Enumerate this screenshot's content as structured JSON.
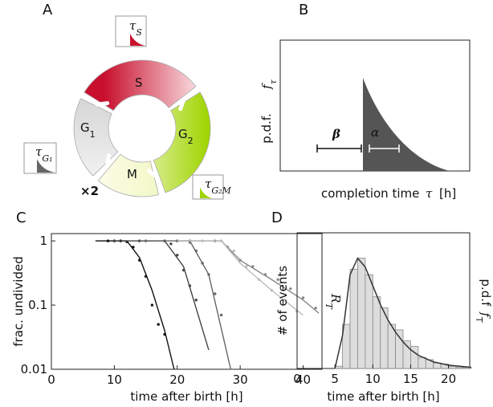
{
  "panels": {
    "A": {
      "label": "A",
      "phases": {
        "S": "S",
        "G1": {
          "base": "G",
          "sub": "1"
        },
        "G2": {
          "base": "G",
          "sub": "2"
        },
        "M": "M"
      },
      "times": {
        "S": {
          "base": "τ",
          "sub": "S"
        },
        "G1": {
          "base": "τ",
          "sub": "G₁"
        },
        "G2M": {
          "base": "τ",
          "sub": "G₂M"
        }
      },
      "multiplier": "×2"
    },
    "B": {
      "label": "B",
      "ylabel": "p.d.f.",
      "f": {
        "base": "f",
        "sub": "τ"
      },
      "beta": "β",
      "alpha": "α",
      "xlabel": "completion time",
      "xvar": "τ",
      "xunit": "[h]"
    }
  },
  "chart_data": [
    {
      "type": "line",
      "label": "C",
      "log_y": true,
      "xlabel": "time after birth [h]",
      "ylabel": "frac. undivided",
      "side_label": {
        "base": "R",
        "sub": "T"
      },
      "xlim": [
        0,
        43
      ],
      "xticks": [
        0,
        10,
        20,
        30,
        40
      ],
      "ylim": [
        0.01,
        1.3
      ],
      "yticks": [
        0.01,
        0.1,
        1
      ],
      "series": [
        {
          "color": "#111111",
          "x": [
            9,
            10,
            11,
            12,
            13,
            14,
            15,
            16,
            17,
            18
          ],
          "values": [
            1,
            1,
            1,
            0.97,
            0.8,
            0.5,
            0.28,
            0.1,
            0.05,
            0.035
          ],
          "fit_x": [
            7,
            12,
            14,
            16,
            18,
            19.5
          ],
          "fit_values": [
            1,
            1,
            0.55,
            0.17,
            0.04,
            0.01
          ]
        },
        {
          "color": "#444444",
          "x": [
            10,
            14,
            18,
            19,
            20,
            21,
            22,
            23
          ],
          "values": [
            1,
            1,
            1,
            0.9,
            0.6,
            0.35,
            0.2,
            0.12
          ],
          "fit_x": [
            10,
            18,
            21,
            25
          ],
          "fit_values": [
            1,
            1,
            0.4,
            0.02
          ]
        },
        {
          "color": "#666666",
          "x": [
            15,
            20,
            22,
            23,
            24,
            25,
            26,
            27
          ],
          "values": [
            1,
            1,
            0.95,
            0.7,
            0.45,
            0.3,
            0.15,
            0.07
          ],
          "fit_x": [
            14,
            22,
            25,
            28.5
          ],
          "fit_values": [
            1,
            1,
            0.3,
            0.01
          ]
        },
        {
          "color": "#888888",
          "x": [
            22,
            26,
            28,
            30,
            32,
            34,
            36,
            38,
            40,
            42
          ],
          "values": [
            1,
            1,
            0.8,
            0.5,
            0.4,
            0.3,
            0.25,
            0.18,
            0.13,
            0.09
          ],
          "fit_x": [
            20,
            27,
            30,
            35,
            40,
            42.5
          ],
          "fit_values": [
            1,
            1,
            0.5,
            0.25,
            0.12,
            0.075
          ]
        },
        {
          "color": "#bbbbbb",
          "x": [
            24,
            27,
            29,
            31,
            33,
            35,
            37,
            39
          ],
          "values": [
            1,
            1,
            0.7,
            0.4,
            0.25,
            0.17,
            0.12,
            0.08
          ],
          "fit_x": [
            20,
            27,
            30,
            35,
            40
          ],
          "fit_values": [
            1,
            1,
            0.45,
            0.17,
            0.07
          ]
        }
      ]
    },
    {
      "type": "histogram",
      "label": "D",
      "xlabel": "time after birth [h]",
      "ylabel": "# of events",
      "side_label": {
        "base": "p.d.f",
        "var": "f",
        "sub": "T"
      },
      "xlim": [
        0,
        22.8
      ],
      "xticks": [
        0,
        5,
        10,
        15,
        20
      ],
      "ylim": [
        0,
        1.23
      ],
      "bins": [
        5,
        6,
        7,
        8,
        9,
        10,
        11,
        12,
        13,
        14,
        15,
        16,
        17,
        18,
        19,
        20,
        21,
        22,
        23
      ],
      "counts": [
        0.02,
        0.4,
        0.9,
        1.0,
        0.85,
        0.65,
        0.55,
        0.4,
        0.35,
        0.25,
        0.2,
        0.1,
        0.08,
        0.05,
        0.04,
        0.02,
        0.01,
        0.01
      ],
      "bar_color": "#dddddd",
      "fit_color": "#333333",
      "fit_x": [
        5,
        6,
        7,
        8,
        9,
        10,
        11,
        12,
        13,
        14,
        15,
        16,
        18,
        20,
        23
      ],
      "fit_values": [
        0,
        0.3,
        0.85,
        1.0,
        0.92,
        0.75,
        0.58,
        0.44,
        0.33,
        0.24,
        0.17,
        0.12,
        0.06,
        0.03,
        0.01
      ]
    }
  ]
}
